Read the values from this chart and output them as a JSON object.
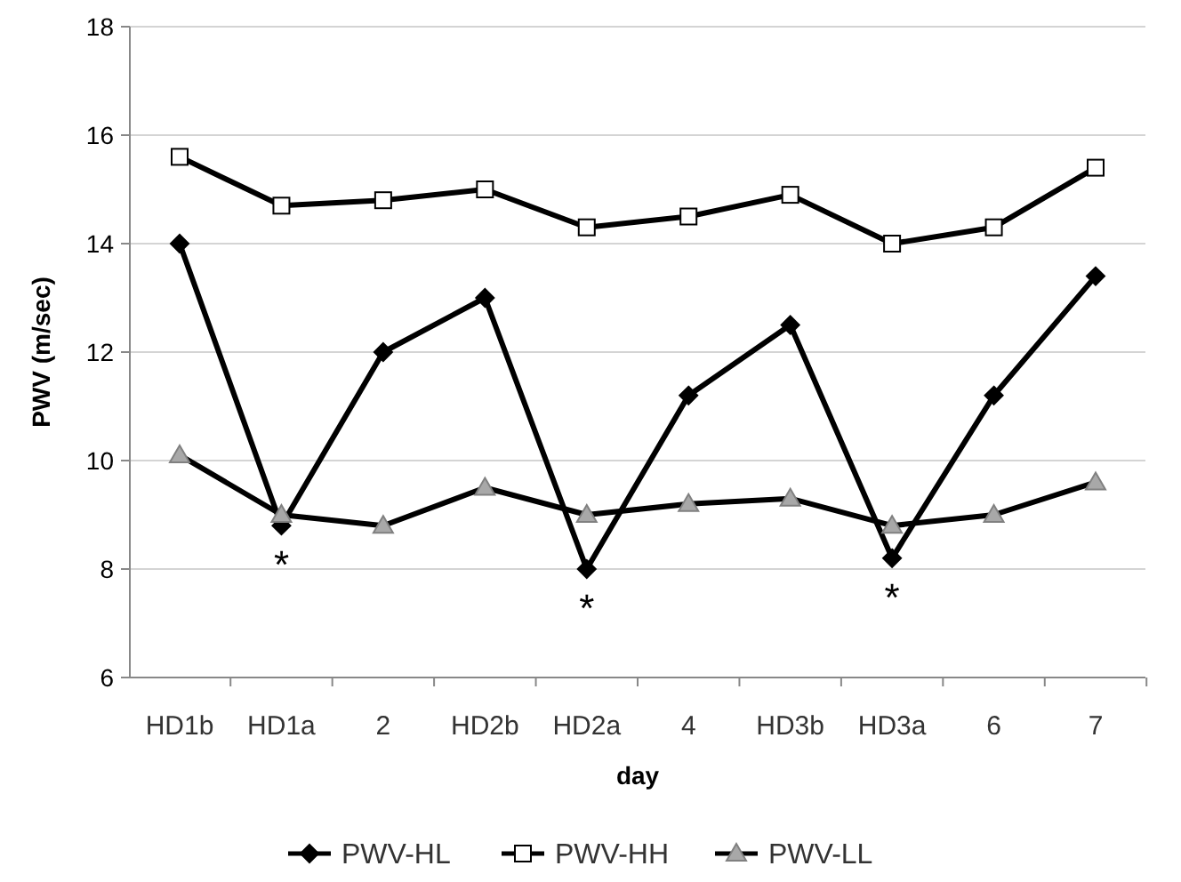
{
  "chart_data": {
    "type": "line",
    "xlabel": "day",
    "ylabel": "PWV (m/sec)",
    "categories": [
      "HD1b",
      "HD1a",
      "2",
      "HD2b",
      "HD2a",
      "4",
      "HD3b",
      "HD3a",
      "6",
      "7"
    ],
    "series": [
      {
        "name": "PWV-HL",
        "color": "#000000",
        "marker": "diamond",
        "values": [
          14.0,
          8.8,
          12.0,
          13.0,
          8.0,
          11.2,
          12.5,
          8.2,
          11.2,
          13.4
        ]
      },
      {
        "name": "PWV-HH",
        "color": "#000000",
        "marker": "square",
        "values": [
          15.6,
          14.7,
          14.8,
          15.0,
          14.3,
          14.5,
          14.9,
          14.0,
          14.3,
          15.4
        ]
      },
      {
        "name": "PWV-LL",
        "color": "#000000",
        "marker": "triangle",
        "values": [
          10.1,
          9.0,
          8.8,
          9.5,
          9.0,
          9.2,
          9.3,
          8.8,
          9.0,
          9.6
        ]
      }
    ],
    "ylim": [
      6,
      18
    ],
    "yticks": [
      6,
      8,
      10,
      12,
      14,
      16,
      18
    ],
    "grid": true,
    "legend": "bottom",
    "line_style": "solid",
    "annotations": [
      {
        "text": "*",
        "x": "HD1a",
        "y": 8.8
      },
      {
        "text": "*",
        "x": "HD2a",
        "y": 8.0
      },
      {
        "text": "*",
        "x": "HD3a",
        "y": 8.2
      }
    ]
  }
}
